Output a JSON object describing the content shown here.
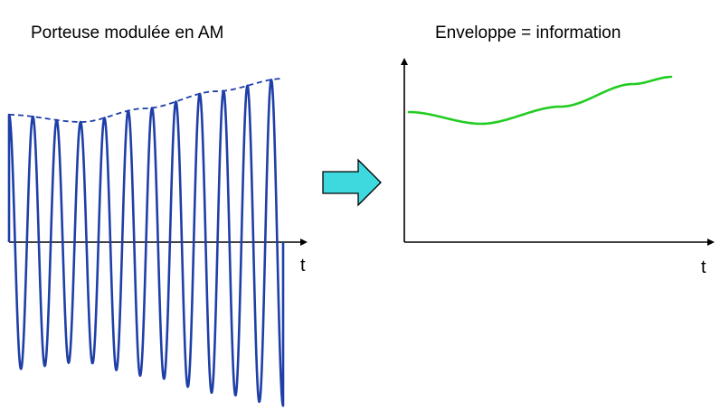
{
  "left_panel": {
    "title": "Porteuse modulée en AM",
    "axis_label": "t",
    "carrier_color": "#1f3fa8",
    "envelope_color": "#1f3fa8"
  },
  "right_panel": {
    "title": "Enveloppe = information",
    "axis_label": "t",
    "curve_color": "#22cc22"
  },
  "arrow": {
    "fill_color": "#3ed9df",
    "stroke_color": "#000000"
  }
}
